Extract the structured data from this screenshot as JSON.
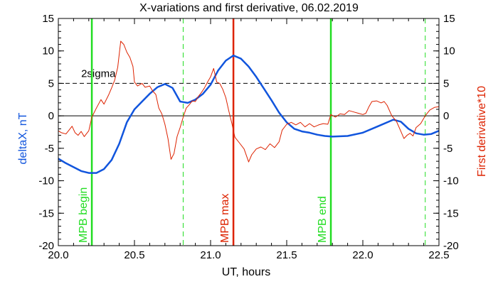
{
  "chart_data": {
    "type": "line",
    "title": "X-variations and first derivative, 06.02.2019",
    "xlabel": "UT, hours",
    "ylabel_left": "deltaX, nT",
    "ylabel_right": "First derivative*10",
    "xlim": [
      20.0,
      22.5
    ],
    "ylim": [
      -20,
      15
    ],
    "x_ticks": [
      "20.0",
      "20.5",
      "21.0",
      "21.5",
      "22.0",
      "22.5"
    ],
    "x_tick_values": [
      20.0,
      20.5,
      21.0,
      21.5,
      22.0,
      22.5
    ],
    "y_ticks_left": [
      "15",
      "10",
      "5",
      "0",
      "-5",
      "-10",
      "-15",
      "-20"
    ],
    "y_ticks_right": [
      "15",
      "10",
      "5",
      "0",
      "-5",
      "-10",
      "-15",
      "-20"
    ],
    "y_tick_values": [
      15,
      10,
      5,
      0,
      -5,
      -10,
      -15,
      -20
    ],
    "threshold": {
      "label": "2sigma",
      "value": 5,
      "label_x": 20.15,
      "label_y": 6.5
    },
    "zero_line": 0,
    "vertical_lines": [
      {
        "x": 20.22,
        "label": "MPB begin",
        "color": "#22dd22",
        "style": "solid"
      },
      {
        "x": 20.82,
        "label": "",
        "color": "#22dd22",
        "style": "dashed"
      },
      {
        "x": 21.15,
        "label": "MPB max",
        "color": "#dd2200",
        "style": "solid"
      },
      {
        "x": 21.79,
        "label": "MPB end",
        "color": "#22dd22",
        "style": "solid"
      },
      {
        "x": 22.41,
        "label": "",
        "color": "#22dd22",
        "style": "dashed"
      }
    ],
    "series": [
      {
        "color": "#1155dd",
        "axis": "left",
        "points": [
          [
            20.0,
            -6.6
          ],
          [
            20.05,
            -7.3
          ],
          [
            20.1,
            -7.9
          ],
          [
            20.15,
            -8.5
          ],
          [
            20.2,
            -8.8
          ],
          [
            20.25,
            -8.8
          ],
          [
            20.3,
            -8.2
          ],
          [
            20.35,
            -6.8
          ],
          [
            20.4,
            -4.3
          ],
          [
            20.45,
            -1.0
          ],
          [
            20.5,
            1.0
          ],
          [
            20.55,
            2.2
          ],
          [
            20.6,
            3.4
          ],
          [
            20.65,
            4.4
          ],
          [
            20.7,
            4.9
          ],
          [
            20.75,
            4.3
          ],
          [
            20.8,
            2.2
          ],
          [
            20.85,
            2.0
          ],
          [
            20.9,
            2.5
          ],
          [
            20.95,
            3.4
          ],
          [
            21.0,
            4.8
          ],
          [
            21.05,
            7.0
          ],
          [
            21.1,
            8.5
          ],
          [
            21.15,
            9.3
          ],
          [
            21.2,
            8.8
          ],
          [
            21.25,
            7.6
          ],
          [
            21.3,
            6.0
          ],
          [
            21.35,
            4.2
          ],
          [
            21.4,
            2.4
          ],
          [
            21.45,
            0.5
          ],
          [
            21.5,
            -1.0
          ],
          [
            21.55,
            -2.0
          ],
          [
            21.6,
            -2.4
          ],
          [
            21.65,
            -2.6
          ],
          [
            21.7,
            -2.9
          ],
          [
            21.75,
            -3.1
          ],
          [
            21.8,
            -3.2
          ],
          [
            21.9,
            -3.1
          ],
          [
            22.0,
            -2.6
          ],
          [
            22.1,
            -1.6
          ],
          [
            22.2,
            -0.6
          ],
          [
            22.25,
            -0.9
          ],
          [
            22.3,
            -2.0
          ],
          [
            22.35,
            -2.7
          ],
          [
            22.4,
            -2.9
          ],
          [
            22.45,
            -2.8
          ],
          [
            22.5,
            -2.3
          ]
        ]
      },
      {
        "color": "#dd2200",
        "axis": "right",
        "points": [
          [
            20.0,
            -2.3
          ],
          [
            20.02,
            -2.6
          ],
          [
            20.05,
            -2.8
          ],
          [
            20.07,
            -2.2
          ],
          [
            20.09,
            -1.6
          ],
          [
            20.11,
            -2.6
          ],
          [
            20.13,
            -3.0
          ],
          [
            20.15,
            -2.4
          ],
          [
            20.17,
            -3.2
          ],
          [
            20.2,
            -2.3
          ],
          [
            20.22,
            -0.2
          ],
          [
            20.25,
            1.2
          ],
          [
            20.28,
            2.5
          ],
          [
            20.3,
            1.8
          ],
          [
            20.33,
            3.2
          ],
          [
            20.35,
            4.3
          ],
          [
            20.37,
            5.5
          ],
          [
            20.39,
            7.5
          ],
          [
            20.41,
            11.5
          ],
          [
            20.43,
            11.0
          ],
          [
            20.45,
            9.8
          ],
          [
            20.47,
            9.0
          ],
          [
            20.49,
            7.6
          ],
          [
            20.5,
            5.2
          ],
          [
            20.52,
            4.6
          ],
          [
            20.55,
            5.0
          ],
          [
            20.57,
            4.4
          ],
          [
            20.6,
            4.6
          ],
          [
            20.62,
            3.8
          ],
          [
            20.64,
            3.3
          ],
          [
            20.66,
            1.2
          ],
          [
            20.68,
            0.3
          ],
          [
            20.7,
            -1.3
          ],
          [
            20.72,
            -3.5
          ],
          [
            20.74,
            -6.7
          ],
          [
            20.76,
            -5.8
          ],
          [
            20.78,
            -3.2
          ],
          [
            20.8,
            -1.8
          ],
          [
            20.82,
            -0.2
          ],
          [
            20.84,
            1.2
          ],
          [
            20.86,
            1.7
          ],
          [
            20.88,
            2.3
          ],
          [
            20.9,
            2.2
          ],
          [
            20.92,
            3.0
          ],
          [
            20.94,
            3.6
          ],
          [
            20.96,
            4.3
          ],
          [
            20.98,
            5.2
          ],
          [
            21.0,
            6.0
          ],
          [
            21.02,
            7.3
          ],
          [
            21.04,
            5.2
          ],
          [
            21.06,
            5.0
          ],
          [
            21.08,
            4.1
          ],
          [
            21.1,
            2.8
          ],
          [
            21.12,
            0.7
          ],
          [
            21.14,
            -1.2
          ],
          [
            21.16,
            -3.3
          ],
          [
            21.19,
            -4.2
          ],
          [
            21.22,
            -5.1
          ],
          [
            21.25,
            -7.1
          ],
          [
            21.27,
            -6.0
          ],
          [
            21.3,
            -5.1
          ],
          [
            21.33,
            -4.8
          ],
          [
            21.36,
            -5.2
          ],
          [
            21.39,
            -4.3
          ],
          [
            21.42,
            -4.9
          ],
          [
            21.45,
            -4.0
          ],
          [
            21.47,
            -2.2
          ],
          [
            21.5,
            -1.3
          ],
          [
            21.53,
            -1.0
          ],
          [
            21.56,
            -1.4
          ],
          [
            21.59,
            -1.0
          ],
          [
            21.62,
            -1.7
          ],
          [
            21.65,
            -1.2
          ],
          [
            21.68,
            -1.7
          ],
          [
            21.71,
            -1.4
          ],
          [
            21.74,
            -1.2
          ],
          [
            21.77,
            -1.3
          ],
          [
            21.79,
            0.2
          ],
          [
            21.82,
            -0.2
          ],
          [
            21.85,
            0.3
          ],
          [
            21.88,
            0.2
          ],
          [
            21.91,
            0.8
          ],
          [
            21.94,
            0.6
          ],
          [
            21.97,
            0.4
          ],
          [
            22.0,
            0.2
          ],
          [
            22.02,
            0.4
          ],
          [
            22.04,
            1.4
          ],
          [
            22.06,
            2.2
          ],
          [
            22.09,
            2.3
          ],
          [
            22.12,
            2.0
          ],
          [
            22.14,
            2.2
          ],
          [
            22.16,
            1.6
          ],
          [
            22.19,
            0.0
          ],
          [
            22.22,
            -0.8
          ],
          [
            22.25,
            -2.4
          ],
          [
            22.27,
            -3.5
          ],
          [
            22.29,
            -3.0
          ],
          [
            22.31,
            -2.7
          ],
          [
            22.33,
            -3.1
          ],
          [
            22.35,
            -1.8
          ],
          [
            22.38,
            -1.2
          ],
          [
            22.41,
            0.0
          ],
          [
            22.44,
            0.9
          ],
          [
            22.47,
            1.3
          ],
          [
            22.5,
            1.4
          ]
        ]
      }
    ]
  }
}
